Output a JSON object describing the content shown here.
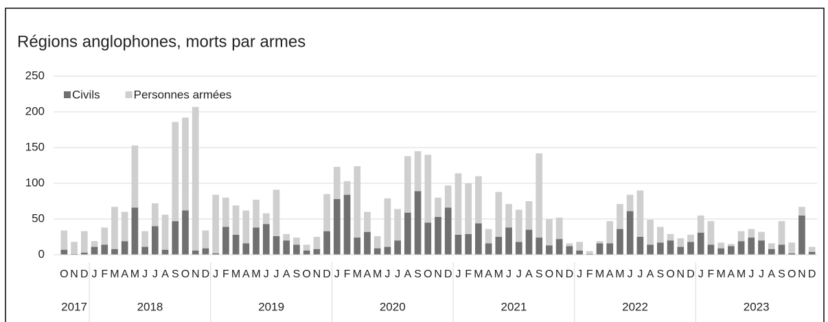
{
  "chart_data": {
    "type": "stacked_bar",
    "title": "Régions anglophones, morts par armes",
    "categories": [
      "O",
      "N",
      "D",
      "J",
      "F",
      "M",
      "A",
      "M",
      "J",
      "J",
      "A",
      "S",
      "O",
      "N",
      "D",
      "J",
      "F",
      "M",
      "A",
      "M",
      "J",
      "J",
      "A",
      "S",
      "O",
      "N",
      "D",
      "J",
      "F",
      "M",
      "A",
      "M",
      "J",
      "J",
      "A",
      "S",
      "O",
      "N",
      "D",
      "J",
      "F",
      "M",
      "A",
      "M",
      "J",
      "J",
      "A",
      "S",
      "O",
      "N",
      "D",
      "J",
      "F",
      "M",
      "A",
      "M",
      "J",
      "J",
      "A",
      "S",
      "O",
      "N",
      "D",
      "J",
      "F",
      "M",
      "A",
      "M",
      "J",
      "J",
      "A",
      "S",
      "O",
      "N",
      "D"
    ],
    "years": [
      "2017",
      "2018",
      "2019",
      "2020",
      "2021",
      "2022",
      "2023"
    ],
    "series": [
      {
        "name": "Civils",
        "color": "#707070",
        "values": [
          7,
          1,
          3,
          11,
          14,
          8,
          19,
          66,
          11,
          40,
          7,
          47,
          62,
          6,
          9,
          2,
          39,
          28,
          16,
          38,
          43,
          26,
          20,
          14,
          6,
          8,
          33,
          78,
          84,
          24,
          32,
          9,
          11,
          20,
          59,
          89,
          45,
          53,
          66,
          28,
          29,
          44,
          16,
          25,
          38,
          18,
          35,
          24,
          13,
          22,
          12,
          6,
          1,
          16,
          16,
          36,
          61,
          25,
          14,
          17,
          20,
          11,
          18,
          31,
          14,
          9,
          12,
          19,
          24,
          20,
          8,
          14,
          2,
          55,
          4
        ]
      },
      {
        "name": "Personnes armées",
        "color": "#cfcfcf",
        "values": [
          27,
          17,
          30,
          8,
          24,
          59,
          41,
          87,
          22,
          32,
          49,
          139,
          130,
          201,
          25,
          82,
          41,
          41,
          46,
          39,
          15,
          65,
          9,
          10,
          8,
          17,
          52,
          45,
          19,
          100,
          28,
          17,
          68,
          44,
          79,
          56,
          95,
          27,
          31,
          86,
          71,
          66,
          20,
          63,
          33,
          45,
          40,
          118,
          37,
          30,
          4,
          12,
          4,
          3,
          31,
          35,
          23,
          65,
          35,
          22,
          9,
          12,
          10,
          24,
          33,
          8,
          3,
          14,
          12,
          12,
          8,
          33,
          15,
          12,
          7
        ]
      }
    ],
    "ylim": [
      0,
      250
    ],
    "yticks": [
      0,
      50,
      100,
      150,
      200,
      250
    ],
    "grid": true,
    "legend": "top-left"
  }
}
